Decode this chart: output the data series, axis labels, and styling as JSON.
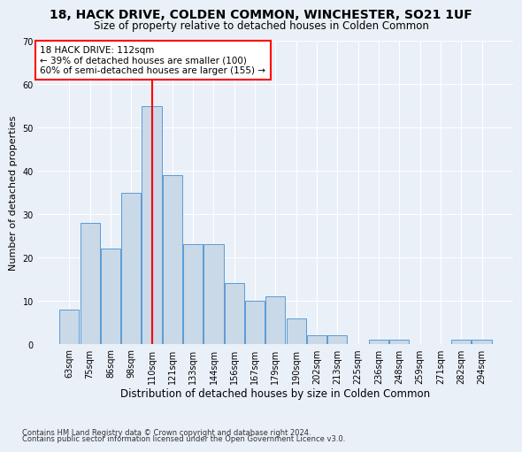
{
  "title": "18, HACK DRIVE, COLDEN COMMON, WINCHESTER, SO21 1UF",
  "subtitle": "Size of property relative to detached houses in Colden Common",
  "xlabel": "Distribution of detached houses by size in Colden Common",
  "ylabel": "Number of detached properties",
  "categories": [
    "63sqm",
    "75sqm",
    "86sqm",
    "98sqm",
    "110sqm",
    "121sqm",
    "133sqm",
    "144sqm",
    "156sqm",
    "167sqm",
    "179sqm",
    "190sqm",
    "202sqm",
    "213sqm",
    "225sqm",
    "236sqm",
    "248sqm",
    "259sqm",
    "271sqm",
    "282sqm",
    "294sqm"
  ],
  "values": [
    8,
    28,
    22,
    35,
    55,
    39,
    23,
    23,
    14,
    10,
    11,
    6,
    2,
    2,
    0,
    1,
    1,
    0,
    0,
    1,
    1
  ],
  "bar_color": "#c9d9e8",
  "bar_edge_color": "#5b9bd5",
  "vline_x": 4.0,
  "vline_color": "red",
  "annotation_text": "18 HACK DRIVE: 112sqm\n← 39% of detached houses are smaller (100)\n60% of semi-detached houses are larger (155) →",
  "annotation_box_color": "white",
  "annotation_box_edge_color": "red",
  "ylim": [
    0,
    70
  ],
  "yticks": [
    0,
    10,
    20,
    30,
    40,
    50,
    60,
    70
  ],
  "background_color": "#eaf0f8",
  "grid_color": "white",
  "footer_line1": "Contains HM Land Registry data © Crown copyright and database right 2024.",
  "footer_line2": "Contains public sector information licensed under the Open Government Licence v3.0.",
  "title_fontsize": 10,
  "subtitle_fontsize": 8.5,
  "xlabel_fontsize": 8.5,
  "ylabel_fontsize": 8,
  "tick_fontsize": 7,
  "annotation_fontsize": 7.5
}
